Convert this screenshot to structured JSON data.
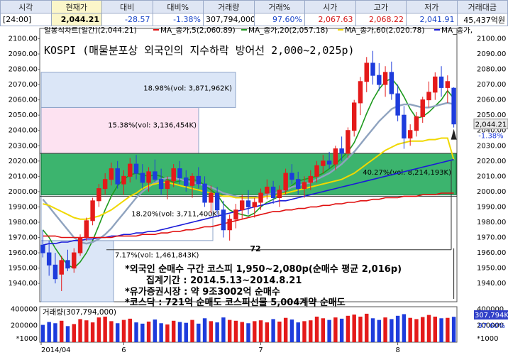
{
  "header": {
    "labels": [
      "시각",
      "현재가",
      "대비",
      "대비%",
      "거래량",
      "거래%",
      "시가",
      "고가",
      "저가",
      "거래대금"
    ],
    "values": [
      "[24:00]",
      "2,044.21",
      "-28.57",
      "-1.38%",
      "307,794,000",
      "97.60%",
      "2,067.63",
      "2,068.22",
      "2,041.91",
      "45,437억원"
    ]
  },
  "legend": {
    "main": "일봉식차트(일간)(2,044.21)",
    "ma5": "MA_종가,5(2,060.89)",
    "ma20": "MA_종가,20(2,057.18)",
    "ma60": "MA_종가,60(2,020.78)",
    "ma_last": "MA_종가,"
  },
  "title": "KOSPI (매물분포상 외국인의 지수하락 방어선 2,000~2,025p)",
  "notes": [
    "*외국인 순매수 구간 코스피 1,950~2,080p(순매수 평균 2,016p)",
    "집계기간 : 2014.5.13~2014.8.21",
    "*유가증권시장 : 약 9조3002억 순매수",
    "*코스닥 : 721억 순매도 코스피선물 5,004계약 순매도"
  ],
  "price_tag": {
    "price": "2,044.21",
    "pct": "-1.38%"
  },
  "volume": {
    "label": "거래량(307,794,000)",
    "unit": "*1000",
    "tag": "307,794K",
    "pct": "97.60%",
    "ticks": [
      "400000",
      "200000"
    ]
  },
  "dates": [
    "2014/04",
    "6",
    "7",
    "8"
  ],
  "colors": {
    "up": "#e41a1a",
    "down": "#1e3cdc",
    "ma5": "#1e9a1e",
    "ma20": "#8fa3bf",
    "ma60": "#f0d800",
    "ma120": "#1a1ad8",
    "ma240": "#e01010",
    "band": "#3cb46e"
  },
  "chart_data": {
    "type": "candlestick",
    "title": "KOSPI (매물분포상 외국인의 지수하락 방어선 2,000~2,025p)",
    "ylim": [
      1928,
      2103
    ],
    "y_ticks": [
      1940,
      1950,
      1960,
      1970,
      1980,
      1990,
      2000,
      2010,
      2020,
      2030,
      2040,
      2050,
      2060,
      2070,
      2080,
      2090,
      2100
    ],
    "x_labels": [
      "2014/04",
      "6",
      "7",
      "8"
    ],
    "candles": [
      [
        1965,
        1975,
        1957,
        1960
      ],
      [
        1960,
        1968,
        1945,
        1952
      ],
      [
        1952,
        1960,
        1940,
        1943
      ],
      [
        1946,
        1958,
        1935,
        1955
      ],
      [
        1955,
        1962,
        1948,
        1950
      ],
      [
        1950,
        1963,
        1947,
        1960
      ],
      [
        1960,
        1972,
        1958,
        1970
      ],
      [
        1970,
        1983,
        1968,
        1981
      ],
      [
        1981,
        1996,
        1978,
        1994
      ],
      [
        1994,
        2005,
        1990,
        2002
      ],
      [
        2002,
        2012,
        1998,
        2008
      ],
      [
        2008,
        2019,
        2004,
        2015
      ],
      [
        2015,
        2020,
        2002,
        2005
      ],
      [
        2005,
        2014,
        1998,
        2010
      ],
      [
        2010,
        2022,
        2006,
        2018
      ],
      [
        2018,
        2024,
        2008,
        2012
      ],
      [
        2012,
        2018,
        2002,
        2006
      ],
      [
        2006,
        2016,
        2000,
        2013
      ],
      [
        2013,
        2021,
        2006,
        2008
      ],
      [
        2008,
        2015,
        1998,
        2002
      ],
      [
        2002,
        2010,
        1995,
        2007
      ],
      [
        2007,
        2018,
        2003,
        2015
      ],
      [
        2015,
        2020,
        2005,
        2009
      ],
      [
        2009,
        2014,
        2000,
        2004
      ],
      [
        2004,
        2012,
        1996,
        2010
      ],
      [
        2010,
        2016,
        2002,
        2005
      ],
      [
        2005,
        2010,
        1990,
        1993
      ],
      [
        1993,
        2004,
        1986,
        1999
      ],
      [
        1999,
        2003,
        1985,
        1988
      ],
      [
        1988,
        1994,
        1970,
        1975
      ],
      [
        1975,
        1985,
        1968,
        1982
      ],
      [
        1982,
        1992,
        1976,
        1988
      ],
      [
        1988,
        1998,
        1982,
        1994
      ],
      [
        1994,
        2001,
        1985,
        1990
      ],
      [
        1990,
        1996,
        1983,
        1993
      ],
      [
        1993,
        2002,
        1988,
        1999
      ],
      [
        1999,
        2008,
        1995,
        2003
      ],
      [
        2003,
        2007,
        1992,
        1996
      ],
      [
        1996,
        2004,
        1990,
        2001
      ],
      [
        2001,
        2015,
        1998,
        2012
      ],
      [
        2012,
        2018,
        2005,
        2008
      ],
      [
        2008,
        2013,
        1998,
        2002
      ],
      [
        2002,
        2010,
        1996,
        2006
      ],
      [
        2006,
        2014,
        2001,
        2010
      ],
      [
        2010,
        2020,
        2006,
        2017
      ],
      [
        2017,
        2024,
        2012,
        2020
      ],
      [
        2020,
        2026,
        2015,
        2018
      ],
      [
        2018,
        2030,
        2014,
        2028
      ],
      [
        2028,
        2036,
        2020,
        2025
      ],
      [
        2025,
        2042,
        2022,
        2040
      ],
      [
        2040,
        2060,
        2036,
        2058
      ],
      [
        2058,
        2075,
        2050,
        2072
      ],
      [
        2072,
        2088,
        2065,
        2084
      ],
      [
        2084,
        2092,
        2070,
        2076
      ],
      [
        2076,
        2084,
        2066,
        2070
      ],
      [
        2070,
        2082,
        2062,
        2078
      ],
      [
        2078,
        2085,
        2060,
        2064
      ],
      [
        2064,
        2070,
        2046,
        2050
      ],
      [
        2050,
        2056,
        2028,
        2035
      ],
      [
        2035,
        2044,
        2030,
        2040
      ],
      [
        2040,
        2052,
        2036,
        2049
      ],
      [
        2049,
        2062,
        2045,
        2060
      ],
      [
        2060,
        2072,
        2055,
        2065
      ],
      [
        2065,
        2078,
        2060,
        2075
      ],
      [
        2075,
        2082,
        2062,
        2068
      ],
      [
        2068,
        2076,
        2058,
        2072
      ],
      [
        2067.63,
        2068.22,
        2041.91,
        2044.21
      ]
    ],
    "series": [
      {
        "name": "MA_종가,5",
        "values": [
          1975,
          1970,
          1963,
          1957,
          1952,
          1950,
          1954,
          1960,
          1968,
          1978,
          1988,
          1997,
          2004,
          2008,
          2011,
          2012,
          2011,
          2010,
          2011,
          2010,
          2008,
          2006,
          2007,
          2008,
          2008,
          2007,
          2004,
          2001,
          1998,
          1992,
          1988,
          1986,
          1985,
          1984,
          1986,
          1990,
          1993,
          1995,
          1997,
          2000,
          2004,
          2007,
          2008,
          2009,
          2010,
          2012,
          2015,
          2018,
          2022,
          2026,
          2032,
          2041,
          2051,
          2060,
          2067,
          2072,
          2074,
          2069,
          2062,
          2054,
          2048,
          2049,
          2052,
          2056,
          2060,
          2066,
          2060.89
        ]
      },
      {
        "name": "MA_종가,20",
        "values": [
          1995,
          1990,
          1985,
          1980,
          1975,
          1970,
          1967,
          1966,
          1967,
          1969,
          1972,
          1976,
          1981,
          1986,
          1991,
          1996,
          2000,
          2003,
          2006,
          2008,
          2009,
          2009,
          2008,
          2007,
          2006,
          2005,
          2004,
          2003,
          2001,
          1999,
          1998,
          1997,
          1996,
          1996,
          1996,
          1997,
          1998,
          1999,
          2000,
          2001,
          2003,
          2004,
          2005,
          2006,
          2008,
          2010,
          2012,
          2015,
          2018,
          2022,
          2026,
          2031,
          2036,
          2041,
          2046,
          2050,
          2054,
          2056,
          2057,
          2057,
          2056,
          2055,
          2055,
          2056,
          2057,
          2058,
          2057.18
        ]
      },
      {
        "name": "MA_종가,60",
        "values": [
          1992,
          1991,
          1989,
          1987,
          1985,
          1983,
          1982,
          1982,
          1983,
          1984,
          1986,
          1988,
          1991,
          1994,
          1997,
          1999,
          2002,
          2004,
          2005,
          2006,
          2006,
          2005,
          2004,
          2003,
          2002,
          2001,
          2000,
          1999,
          1998,
          1997,
          1997,
          1996,
          1996,
          1996,
          1996,
          1996,
          1997,
          1997,
          1998,
          1999,
          2000,
          2001,
          2002,
          2003,
          2004,
          2005,
          2006,
          2007,
          2008,
          2010,
          2012,
          2015,
          2018,
          2021,
          2024,
          2027,
          2029,
          2031,
          2032,
          2033,
          2033,
          2033,
          2034,
          2034,
          2035,
          2035,
          2020.78
        ]
      },
      {
        "name": "MA_종가,120",
        "values": [
          1965,
          1966,
          1966,
          1967,
          1967,
          1968,
          1968,
          1969,
          1969,
          1970,
          1970,
          1971,
          1971,
          1972,
          1972,
          1973,
          1973,
          1974,
          1974,
          1975,
          1976,
          1977,
          1978,
          1979,
          1980,
          1981,
          1982,
          1983,
          1984,
          1985,
          1986,
          1987,
          1988,
          1989,
          1990,
          1991,
          1992,
          1993,
          1994,
          1994,
          1995,
          1996,
          1997,
          1998,
          1999,
          2000,
          2001,
          2002,
          2003,
          2004,
          2005,
          2006,
          2007,
          2008,
          2009,
          2010,
          2011,
          2012,
          2013,
          2014,
          2015,
          2016,
          2017,
          2018,
          2019,
          2020,
          2021
        ]
      },
      {
        "name": "MA_종가,240",
        "values": [
          1971,
          1971,
          1971,
          1970,
          1970,
          1970,
          1970,
          1970,
          1970,
          1970,
          1970,
          1970,
          1971,
          1971,
          1971,
          1971,
          1972,
          1972,
          1972,
          1973,
          1973,
          1974,
          1974,
          1975,
          1975,
          1976,
          1977,
          1977,
          1978,
          1979,
          1980,
          1981,
          1982,
          1983,
          1984,
          1985,
          1986,
          1987,
          1987,
          1988,
          1988,
          1989,
          1989,
          1990,
          1990,
          1991,
          1991,
          1992,
          1992,
          1993,
          1993,
          1994,
          1994,
          1995,
          1995,
          1996,
          1996,
          1996,
          1997,
          1997,
          1997,
          1998,
          1998,
          1998,
          1999,
          1999,
          1999
        ]
      }
    ],
    "volume": [
      210,
      245,
      230,
      260,
      195,
      220,
      280,
      265,
      240,
      300,
      310,
      255,
      230,
      270,
      285,
      240,
      225,
      250,
      275,
      230,
      215,
      260,
      245,
      235,
      270,
      225,
      290,
      255,
      240,
      300,
      270,
      260,
      245,
      230,
      255,
      265,
      240,
      280,
      250,
      295,
      275,
      240,
      255,
      265,
      310,
      290,
      270,
      300,
      285,
      320,
      335,
      310,
      345,
      290,
      270,
      300,
      280,
      320,
      340,
      295,
      280,
      305,
      330,
      310,
      290,
      295,
      307.794
    ],
    "volume_ylim": [
      0,
      430
    ],
    "volume_ticks": [
      200000,
      400000
    ],
    "bands": [
      {
        "label": "7.17%(vol: 1,461,843K)",
        "low": 1928,
        "high": 1968,
        "pct": 7.17,
        "vol": "1,461,843K"
      },
      {
        "label": "18.20%(vol: 3,711,400K)",
        "low": 1968,
        "high": 1998,
        "pct": 18.2,
        "vol": "3,711,400K"
      },
      {
        "label": "40.27%(vol: 8,214,193K)",
        "low": 1998,
        "high": 2025,
        "pct": 40.27,
        "vol": "8,214,193K"
      },
      {
        "label": "15.38%(vol: 3,136,454K)",
        "low": 2025,
        "high": 2055,
        "pct": 15.38,
        "vol": "3,136,454K"
      },
      {
        "label": "18.98%(vol: 3,871,962K)",
        "low": 2055,
        "high": 2078,
        "pct": 18.98,
        "vol": "3,871,962K"
      }
    ],
    "annotations": [
      "72"
    ]
  }
}
